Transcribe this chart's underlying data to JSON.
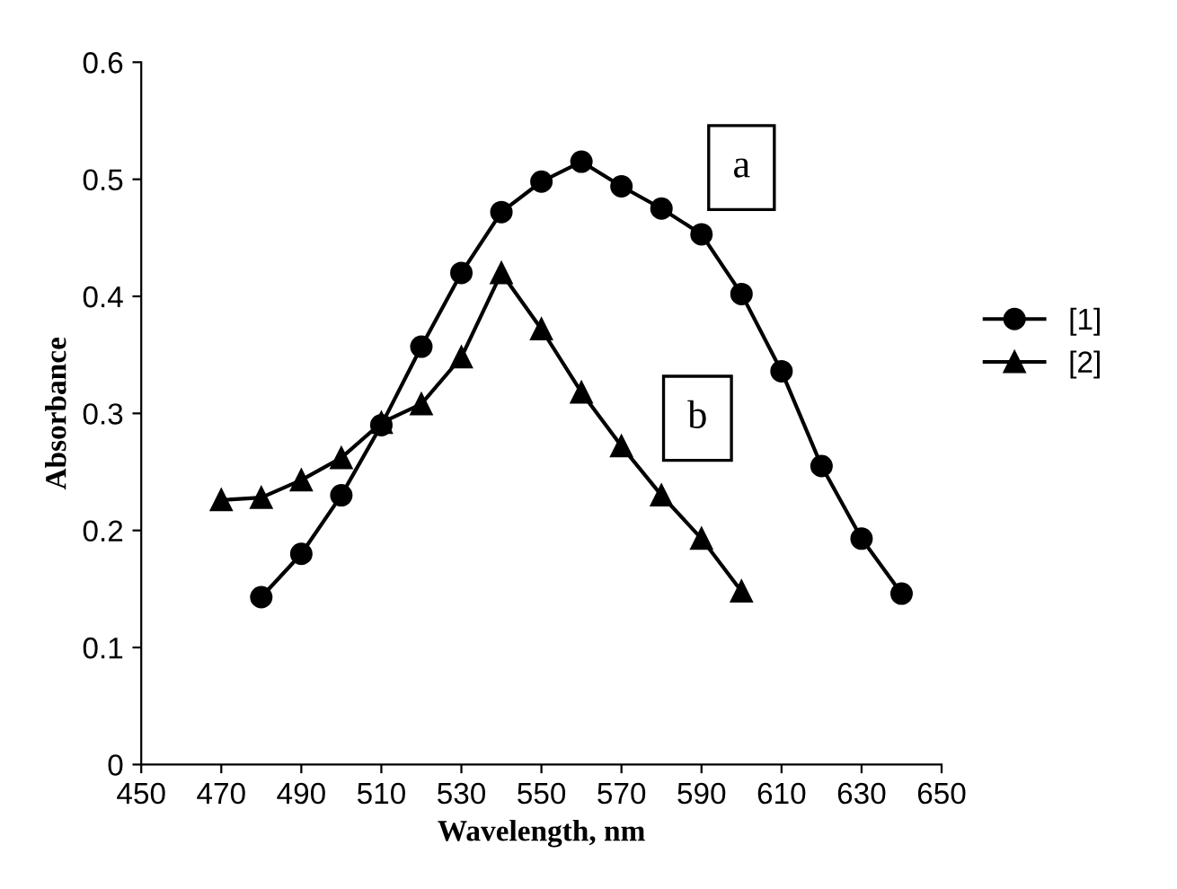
{
  "chart_data": {
    "type": "line",
    "xlabel": "Wavelength, nm",
    "ylabel": "Absorbance",
    "xlim": [
      450,
      650
    ],
    "xticks": [
      450,
      470,
      490,
      510,
      530,
      550,
      570,
      590,
      610,
      630,
      650
    ],
    "ylim": [
      0,
      0.6
    ],
    "yticks": [
      0,
      0.1,
      0.2,
      0.3,
      0.4,
      0.5,
      0.6
    ],
    "grid": false,
    "legend": "right",
    "line_style": "solid",
    "series": [
      {
        "name": "[1]",
        "color": "#000000",
        "marker": "circle",
        "x": [
          480,
          490,
          500,
          510,
          520,
          530,
          540,
          550,
          560,
          570,
          580,
          590,
          600,
          610,
          620,
          630,
          640
        ],
        "values": [
          0.143,
          0.18,
          0.23,
          0.29,
          0.357,
          0.42,
          0.472,
          0.498,
          0.515,
          0.494,
          0.475,
          0.453,
          0.402,
          0.336,
          0.255,
          0.193,
          0.146
        ]
      },
      {
        "name": "[2]",
        "color": "#000000",
        "marker": "triangle",
        "x": [
          470,
          480,
          490,
          500,
          510,
          520,
          530,
          540,
          550,
          560,
          570,
          580,
          590,
          600
        ],
        "values": [
          0.226,
          0.228,
          0.243,
          0.262,
          0.292,
          0.308,
          0.348,
          0.42,
          0.372,
          0.318,
          0.272,
          0.23,
          0.193,
          0.148
        ]
      }
    ],
    "annotations": [
      "a",
      "b"
    ]
  }
}
